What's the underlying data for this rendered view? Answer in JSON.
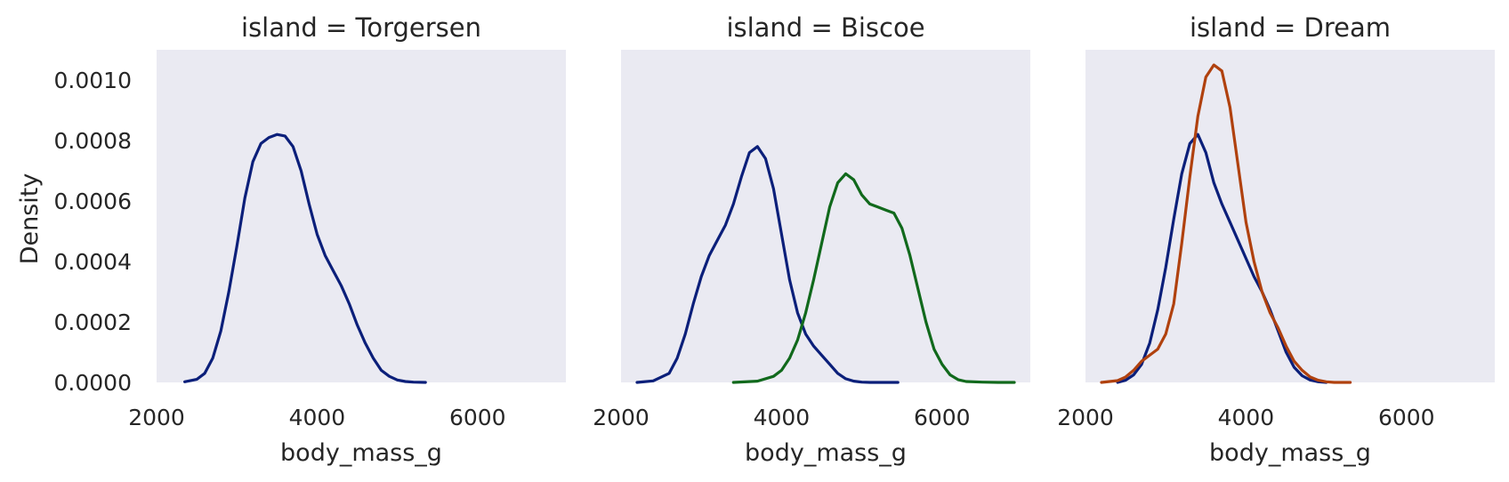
{
  "chart_data": {
    "type": "line",
    "kind": "kde",
    "ylabel": "Density",
    "ylim": [
      0,
      0.0011
    ],
    "xlim": [
      2000,
      7100
    ],
    "xticks": [
      2000,
      4000,
      6000
    ],
    "xtick_labels": [
      "2000",
      "4000",
      "6000"
    ],
    "yticks": [
      0,
      0.0002,
      0.0004,
      0.0006,
      0.0008,
      0.001
    ],
    "ytick_labels": [
      "0.0000",
      "0.0002",
      "0.0004",
      "0.0006",
      "0.0008",
      "0.0010"
    ],
    "grid": false,
    "colors": [
      "#0b1f7a",
      "#11691c",
      "#b0410e"
    ],
    "panels": [
      {
        "title": "island = Torgersen",
        "xlabel": "body_mass_g",
        "series": [
          {
            "color": "#0b1f7a",
            "x": [
              2350,
              2500,
              2600,
              2700,
              2800,
              2900,
              3000,
              3100,
              3200,
              3300,
              3400,
              3500,
              3600,
              3700,
              3800,
              3900,
              4000,
              4100,
              4200,
              4300,
              4400,
              4500,
              4600,
              4700,
              4800,
              4900,
              5000,
              5100,
              5200,
              5350
            ],
            "y": [
              2e-06,
              1e-05,
              3e-05,
              8e-05,
              0.00017,
              0.0003,
              0.00045,
              0.00061,
              0.00073,
              0.00079,
              0.00081,
              0.00082,
              0.000815,
              0.00078,
              0.0007,
              0.00059,
              0.00049,
              0.00042,
              0.00037,
              0.00032,
              0.00026,
              0.00019,
              0.00013,
              8e-05,
              4e-05,
              2e-05,
              8e-06,
              3e-06,
              1e-06,
              0.0
            ]
          }
        ]
      },
      {
        "title": "island = Biscoe",
        "xlabel": "body_mass_g",
        "series": [
          {
            "color": "#0b1f7a",
            "x": [
              2200,
              2400,
              2600,
              2700,
              2800,
              2900,
              3000,
              3100,
              3200,
              3300,
              3400,
              3500,
              3600,
              3700,
              3800,
              3900,
              4000,
              4100,
              4200,
              4300,
              4400,
              4500,
              4600,
              4700,
              4800,
              4900,
              5000,
              5100,
              5200,
              5300,
              5450
            ],
            "y": [
              0.0,
              5e-06,
              3e-05,
              8e-05,
              0.00016,
              0.00026,
              0.00035,
              0.00042,
              0.00047,
              0.00052,
              0.00059,
              0.00068,
              0.00076,
              0.00078,
              0.00074,
              0.00064,
              0.00049,
              0.00034,
              0.00023,
              0.00016,
              0.00012,
              9e-05,
              6e-05,
              3e-05,
              1.2e-05,
              4e-06,
              1e-06,
              0.0,
              0.0,
              0.0,
              0.0
            ]
          },
          {
            "color": "#11691c",
            "x": [
              3400,
              3700,
              3900,
              4000,
              4100,
              4200,
              4300,
              4400,
              4500,
              4600,
              4700,
              4800,
              4900,
              5000,
              5100,
              5200,
              5300,
              5400,
              5500,
              5600,
              5700,
              5800,
              5900,
              6000,
              6100,
              6200,
              6300,
              6500,
              6700,
              6900
            ],
            "y": [
              0.0,
              4e-06,
              2e-05,
              4e-05,
              8e-05,
              0.00014,
              0.00023,
              0.00034,
              0.00046,
              0.00058,
              0.00066,
              0.00069,
              0.00067,
              0.00062,
              0.00059,
              0.00058,
              0.00057,
              0.00056,
              0.00051,
              0.00042,
              0.00031,
              0.0002,
              0.00011,
              6e-05,
              2.5e-05,
              9e-06,
              3e-06,
              1e-06,
              0.0,
              0.0
            ]
          }
        ]
      },
      {
        "title": "island = Dream",
        "xlabel": "body_mass_g",
        "series": [
          {
            "color": "#0b1f7a",
            "x": [
              2400,
              2500,
              2600,
              2700,
              2800,
              2900,
              3000,
              3100,
              3200,
              3300,
              3400,
              3500,
              3600,
              3700,
              3800,
              3900,
              4000,
              4100,
              4200,
              4300,
              4400,
              4500,
              4600,
              4700,
              4800,
              4900,
              5000
            ],
            "y": [
              0.0,
              7e-06,
              2.5e-05,
              6e-05,
              0.00013,
              0.00024,
              0.00038,
              0.00054,
              0.00069,
              0.00079,
              0.00082,
              0.00076,
              0.00066,
              0.00059,
              0.00053,
              0.00047,
              0.00041,
              0.00035,
              0.0003,
              0.00024,
              0.00017,
              0.0001,
              5e-05,
              2.2e-05,
              8e-06,
              2e-06,
              0.0
            ]
          },
          {
            "color": "#b0410e",
            "x": [
              2200,
              2400,
              2500,
              2600,
              2700,
              2800,
              2900,
              3000,
              3100,
              3200,
              3300,
              3400,
              3500,
              3600,
              3700,
              3800,
              3900,
              4000,
              4100,
              4200,
              4300,
              4400,
              4500,
              4600,
              4700,
              4800,
              4900,
              5000,
              5100,
              5300
            ],
            "y": [
              0.0,
              6e-06,
              1.8e-05,
              4e-05,
              7e-05,
              9e-05,
              0.00011,
              0.00016,
              0.00026,
              0.00046,
              0.00068,
              0.00088,
              0.00101,
              0.00105,
              0.00103,
              0.00091,
              0.00072,
              0.00053,
              0.0004,
              0.0003,
              0.00023,
              0.00018,
              0.00012,
              7e-05,
              4e-05,
              1.8e-05,
              7e-06,
              2e-06,
              0.0,
              0.0
            ]
          }
        ]
      }
    ]
  }
}
